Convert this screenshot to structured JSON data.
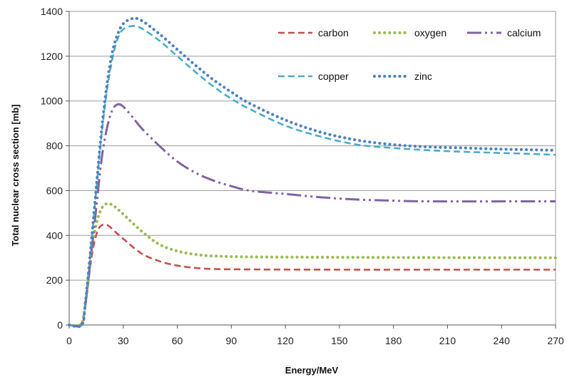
{
  "chart_data": {
    "type": "line",
    "title": "",
    "xlabel": "Energy/MeV",
    "ylabel": "Total nuclear cross section [mb]",
    "xlim": [
      0,
      270
    ],
    "ylim": [
      0,
      1400
    ],
    "x_ticks": [
      0,
      30,
      60,
      90,
      120,
      150,
      180,
      210,
      240,
      270
    ],
    "y_ticks": [
      0,
      200,
      400,
      600,
      800,
      1000,
      1200,
      1400
    ],
    "grid": "horizontal",
    "legend_position": "top-right",
    "series": [
      {
        "name": "carbon",
        "color": "#c0504d",
        "style": "dash",
        "points": [
          [
            0,
            0
          ],
          [
            6,
            0
          ],
          [
            8,
            40
          ],
          [
            10,
            150
          ],
          [
            12,
            280
          ],
          [
            14,
            370
          ],
          [
            16,
            425
          ],
          [
            18,
            445
          ],
          [
            20,
            448
          ],
          [
            22,
            442
          ],
          [
            25,
            420
          ],
          [
            30,
            385
          ],
          [
            40,
            320
          ],
          [
            50,
            285
          ],
          [
            60,
            265
          ],
          [
            70,
            255
          ],
          [
            80,
            250
          ],
          [
            100,
            248
          ],
          [
            150,
            247
          ],
          [
            200,
            247
          ],
          [
            270,
            247
          ]
        ]
      },
      {
        "name": "oxygen",
        "color": "#9bbb59",
        "style": "dot",
        "points": [
          [
            0,
            0
          ],
          [
            6,
            0
          ],
          [
            8,
            40
          ],
          [
            10,
            160
          ],
          [
            12,
            300
          ],
          [
            14,
            410
          ],
          [
            16,
            480
          ],
          [
            18,
            520
          ],
          [
            20,
            538
          ],
          [
            22,
            542
          ],
          [
            25,
            530
          ],
          [
            30,
            495
          ],
          [
            40,
            420
          ],
          [
            50,
            360
          ],
          [
            60,
            330
          ],
          [
            70,
            315
          ],
          [
            80,
            308
          ],
          [
            100,
            304
          ],
          [
            150,
            302
          ],
          [
            200,
            301
          ],
          [
            270,
            300
          ]
        ]
      },
      {
        "name": "calcium",
        "color": "#8064a2",
        "style": "dashdot",
        "points": [
          [
            0,
            0
          ],
          [
            7,
            0
          ],
          [
            9,
            90
          ],
          [
            12,
            300
          ],
          [
            15,
            520
          ],
          [
            18,
            740
          ],
          [
            21,
            880
          ],
          [
            24,
            960
          ],
          [
            27,
            985
          ],
          [
            30,
            975
          ],
          [
            35,
            930
          ],
          [
            40,
            880
          ],
          [
            50,
            800
          ],
          [
            60,
            730
          ],
          [
            70,
            680
          ],
          [
            80,
            645
          ],
          [
            90,
            620
          ],
          [
            100,
            600
          ],
          [
            120,
            585
          ],
          [
            140,
            570
          ],
          [
            160,
            560
          ],
          [
            180,
            555
          ],
          [
            200,
            552
          ],
          [
            270,
            552
          ]
        ]
      },
      {
        "name": "copper",
        "color": "#4bacc6",
        "style": "dash",
        "points": [
          [
            0,
            0
          ],
          [
            7,
            0
          ],
          [
            9,
            100
          ],
          [
            12,
            340
          ],
          [
            15,
            600
          ],
          [
            18,
            850
          ],
          [
            21,
            1050
          ],
          [
            24,
            1190
          ],
          [
            27,
            1280
          ],
          [
            30,
            1320
          ],
          [
            35,
            1335
          ],
          [
            40,
            1325
          ],
          [
            50,
            1270
          ],
          [
            60,
            1200
          ],
          [
            70,
            1130
          ],
          [
            80,
            1065
          ],
          [
            90,
            1010
          ],
          [
            100,
            965
          ],
          [
            120,
            890
          ],
          [
            140,
            840
          ],
          [
            160,
            805
          ],
          [
            180,
            790
          ],
          [
            200,
            780
          ],
          [
            220,
            773
          ],
          [
            240,
            768
          ],
          [
            270,
            760
          ]
        ]
      },
      {
        "name": "zinc",
        "color": "#4f81bd",
        "style": "dot",
        "points": [
          [
            0,
            0
          ],
          [
            7,
            0
          ],
          [
            9,
            100
          ],
          [
            12,
            345
          ],
          [
            15,
            610
          ],
          [
            18,
            870
          ],
          [
            21,
            1075
          ],
          [
            24,
            1220
          ],
          [
            27,
            1300
          ],
          [
            30,
            1345
          ],
          [
            35,
            1368
          ],
          [
            40,
            1360
          ],
          [
            50,
            1300
          ],
          [
            60,
            1230
          ],
          [
            70,
            1160
          ],
          [
            80,
            1095
          ],
          [
            90,
            1040
          ],
          [
            100,
            990
          ],
          [
            120,
            915
          ],
          [
            140,
            860
          ],
          [
            160,
            825
          ],
          [
            180,
            805
          ],
          [
            200,
            795
          ],
          [
            220,
            790
          ],
          [
            240,
            785
          ],
          [
            270,
            780
          ]
        ]
      }
    ]
  }
}
